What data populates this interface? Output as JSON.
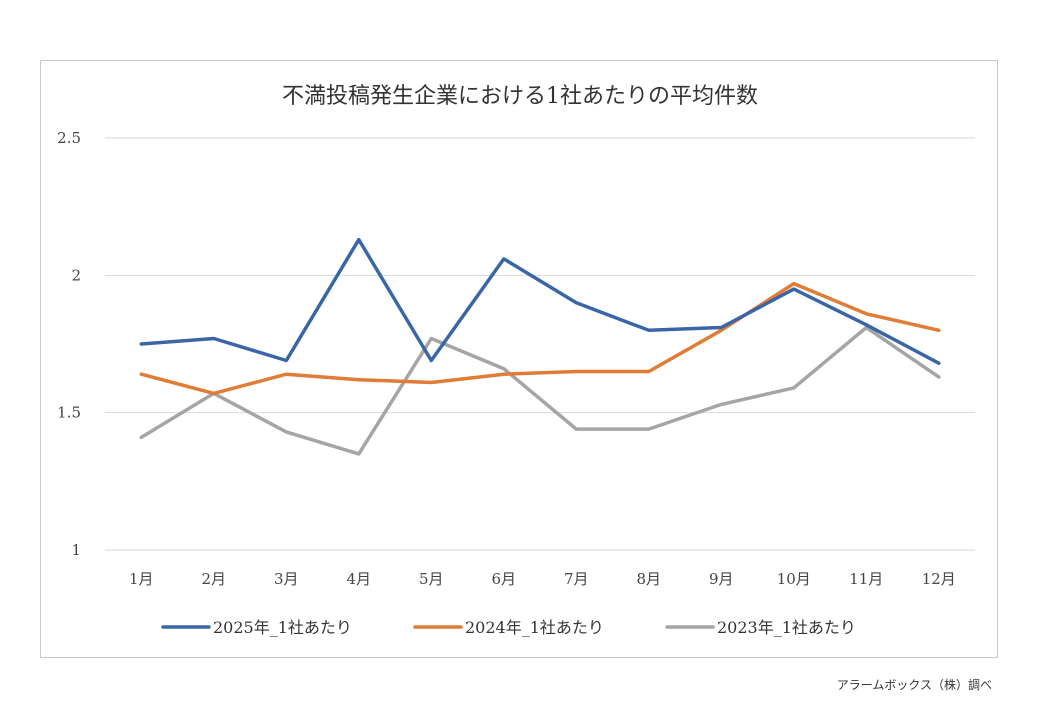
{
  "chart_data": {
    "type": "line",
    "title": "不満投稿発生企業における1社あたりの平均件数",
    "categories": [
      "1月",
      "2月",
      "3月",
      "4月",
      "5月",
      "6月",
      "7月",
      "8月",
      "9月",
      "10月",
      "11月",
      "12月"
    ],
    "ylim": [
      1,
      2.5
    ],
    "yticks": [
      1,
      1.5,
      2,
      2.5
    ],
    "ytick_labels": [
      "1",
      "1.5",
      "2",
      "2.5"
    ],
    "grid": true,
    "legend_position": "bottom",
    "series": [
      {
        "name": "2025年_1社あたり",
        "color": "#3a66a8",
        "values": [
          1.75,
          1.77,
          1.69,
          2.13,
          1.69,
          2.06,
          1.9,
          1.8,
          1.81,
          1.95,
          1.82,
          1.68
        ]
      },
      {
        "name": "2024年_1社あたり",
        "color": "#e07c36",
        "values": [
          1.64,
          1.57,
          1.64,
          1.62,
          1.61,
          1.64,
          1.65,
          1.65,
          1.8,
          1.97,
          1.86,
          1.8
        ]
      },
      {
        "name": "2023年_1社あたり",
        "color": "#a5a5a5",
        "values": [
          1.41,
          1.57,
          1.43,
          1.35,
          1.77,
          1.66,
          1.44,
          1.44,
          1.53,
          1.59,
          1.81,
          1.63
        ]
      }
    ]
  },
  "credit": "アラームボックス（株）調べ"
}
